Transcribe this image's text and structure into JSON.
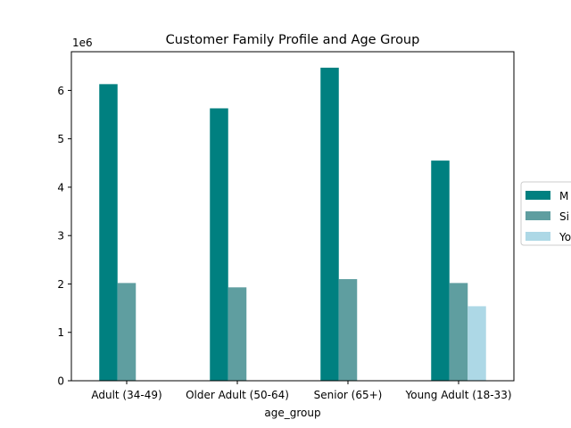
{
  "chart_data": {
    "type": "bar",
    "title": "Customer Family Profile and Age Group",
    "xlabel": "age_group",
    "ylabel": "",
    "y_offset_label": "1e6",
    "ylim": [
      0,
      6.8
    ],
    "yticks": [
      0,
      1,
      2,
      3,
      4,
      5,
      6
    ],
    "scale_factor": 1000000,
    "categories": [
      "Adult (34-49)",
      "Older Adult (50-64)",
      "Senior (65+)",
      "Young Adult (18-33)"
    ],
    "series": [
      {
        "name": "M",
        "color": "#008080",
        "values": [
          6.13,
          5.63,
          6.47,
          4.55
        ]
      },
      {
        "name": "Si",
        "color": "#5f9ea0",
        "values": [
          2.02,
          1.93,
          2.1,
          2.02
        ]
      },
      {
        "name": "Yo",
        "color": "#add8e6",
        "values": [
          0,
          0,
          0,
          1.54
        ]
      }
    ],
    "legend_position": "right (clipped at page edge)",
    "grid": false
  }
}
